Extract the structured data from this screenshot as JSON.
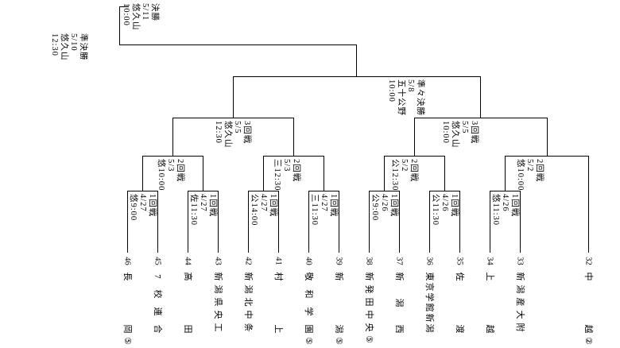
{
  "colors": {
    "background": "#ffffff",
    "lines": "#000000",
    "text": "#000000"
  },
  "rounds": {
    "final": {
      "lines": [
        "決勝",
        "5/11",
        "悠久山",
        "10:00"
      ]
    },
    "semifinal": {
      "lines": [
        "準決勝",
        "5/10",
        "悠久山",
        "12:30"
      ]
    },
    "quarterfinal": {
      "lines": [
        "準々決勝",
        "5/8",
        "五十公野",
        "10:00"
      ]
    },
    "round3": [
      {
        "lines": [
          "3回戦",
          "5/5",
          "悠久山",
          "12:30"
        ]
      },
      {
        "lines": [
          "3回戦",
          "5/5",
          "悠久山",
          "10:00"
        ]
      }
    ],
    "round2": [
      {
        "lines": [
          "2回戦",
          "5/3",
          "悠10:00"
        ]
      },
      {
        "lines": [
          "2回戦",
          "5/3",
          "三12:30"
        ]
      },
      {
        "lines": [
          "2回戦",
          "5/2",
          "公12:30"
        ]
      },
      {
        "lines": [
          "2回戦",
          "5/2",
          "悠10:00"
        ]
      }
    ],
    "round1": [
      {
        "lines": [
          "1回戦",
          "4/27",
          "悠9:00"
        ]
      },
      {
        "lines": [
          "1回戦",
          "4/27",
          "佐11:30"
        ]
      },
      {
        "lines": [
          "1回戦",
          "4/27",
          "公14:00"
        ]
      },
      {
        "lines": [
          "1回戦",
          "4/27",
          "三11:30"
        ]
      },
      {
        "lines": [
          "1回戦",
          "4/26",
          "公9:00"
        ]
      },
      {
        "lines": [
          "1回戦",
          "4/26",
          "公11:30"
        ]
      },
      {
        "lines": [
          "1回戦",
          "4/26",
          "悠11:30"
        ]
      }
    ]
  },
  "teams": [
    {
      "number": "46",
      "name": "長岡",
      "mark": "⑤"
    },
    {
      "number": "45",
      "name": "7校連合",
      "mark": ""
    },
    {
      "number": "44",
      "name": "高田",
      "mark": ""
    },
    {
      "number": "43",
      "name": "新潟県央工",
      "mark": ""
    },
    {
      "number": "42",
      "name": "新潟北中条",
      "mark": ""
    },
    {
      "number": "41",
      "name": "村上",
      "mark": ""
    },
    {
      "number": "40",
      "name": "敬和学園",
      "mark": "⑤"
    },
    {
      "number": "39",
      "name": "新潟",
      "mark": "⑤"
    },
    {
      "number": "38",
      "name": "新発田中央",
      "mark": "⑤"
    },
    {
      "number": "37",
      "name": "新潟西",
      "mark": ""
    },
    {
      "number": "36",
      "name": "東京学館新潟",
      "mark": ""
    },
    {
      "number": "35",
      "name": "佐渡",
      "mark": ""
    },
    {
      "number": "34",
      "name": "上越",
      "mark": ""
    },
    {
      "number": "33",
      "name": "新潟産大附",
      "mark": ""
    },
    {
      "number": "32",
      "name": "中越",
      "mark": "②"
    }
  ]
}
